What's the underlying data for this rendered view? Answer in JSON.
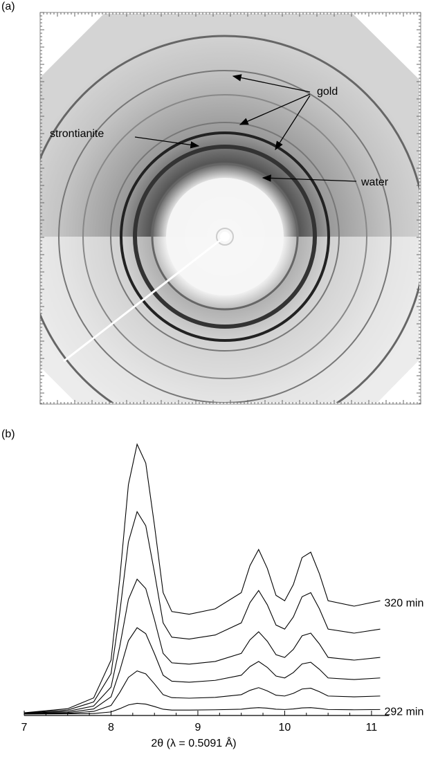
{
  "panel_a": {
    "label": "(a)",
    "annotations": {
      "gold": "gold",
      "strontianite": "strontianite",
      "water": "water"
    }
  },
  "panel_b": {
    "label": "(b)"
  },
  "chart_data": {
    "type": "line",
    "x_label": "2θ (λ = 0.5091 Å)",
    "x": [
      7,
      7.5,
      7.8,
      8.0,
      8.1,
      8.2,
      8.3,
      8.4,
      8.5,
      8.6,
      8.7,
      8.9,
      9.2,
      9.5,
      9.6,
      9.7,
      9.8,
      9.9,
      10.0,
      10.1,
      10.2,
      10.3,
      10.4,
      10.5,
      10.8,
      11.1
    ],
    "xlim": [
      7,
      11.2
    ],
    "xticks": [
      7,
      8,
      9,
      10,
      11
    ],
    "ylim": [
      0,
      100
    ],
    "series": [
      {
        "name": "320 min",
        "color": "#000000",
        "values": [
          0.5,
          2,
          6,
          20,
          50,
          85,
          100,
          93,
          70,
          45,
          38,
          37,
          39,
          45,
          55,
          61,
          54,
          44,
          42,
          48,
          58,
          60,
          52,
          42,
          40,
          42
        ]
      },
      {
        "color": "#000000",
        "values": [
          0.4,
          1.5,
          4.5,
          15,
          37.5,
          63.8,
          75,
          69.8,
          52.5,
          33.8,
          28.5,
          27.8,
          29.3,
          33.8,
          41.3,
          45.8,
          40.5,
          33,
          31.5,
          36,
          43.5,
          45,
          39,
          31.5,
          30,
          31.5
        ]
      },
      {
        "color": "#000000",
        "values": [
          0.3,
          1,
          3,
          10,
          25,
          42.5,
          50,
          46.5,
          35,
          22.5,
          19,
          18.5,
          19.5,
          22.5,
          27.5,
          30.5,
          27,
          22,
          21,
          24,
          29,
          30,
          26,
          21,
          20,
          21
        ]
      },
      {
        "color": "#000000",
        "values": [
          0.2,
          0.6,
          1.9,
          6.4,
          16,
          27.2,
          32,
          29.8,
          22.4,
          14.4,
          12.2,
          11.8,
          12.5,
          14.4,
          17.6,
          19.5,
          17.3,
          14.1,
          13.4,
          15.4,
          18.6,
          19.2,
          16.6,
          13.4,
          12.8,
          13.4
        ]
      },
      {
        "color": "#000000",
        "values": [
          0.1,
          0.3,
          1,
          3.2,
          8,
          13.6,
          16,
          14.9,
          11.2,
          7.2,
          6.1,
          5.9,
          6.2,
          7.2,
          8.8,
          9.8,
          8.6,
          7,
          6.7,
          7.7,
          9.3,
          9.6,
          8.3,
          6.7,
          6.4,
          6.7
        ]
      },
      {
        "name": "292 min",
        "color": "#000000",
        "values": [
          0,
          0.1,
          0.2,
          0.8,
          2,
          3.4,
          4,
          3.7,
          2.8,
          1.8,
          1.5,
          1.5,
          1.6,
          1.8,
          2.2,
          2.4,
          2.2,
          1.8,
          1.7,
          1.9,
          2.3,
          2.4,
          2.1,
          1.7,
          1.6,
          1.7
        ]
      }
    ]
  }
}
